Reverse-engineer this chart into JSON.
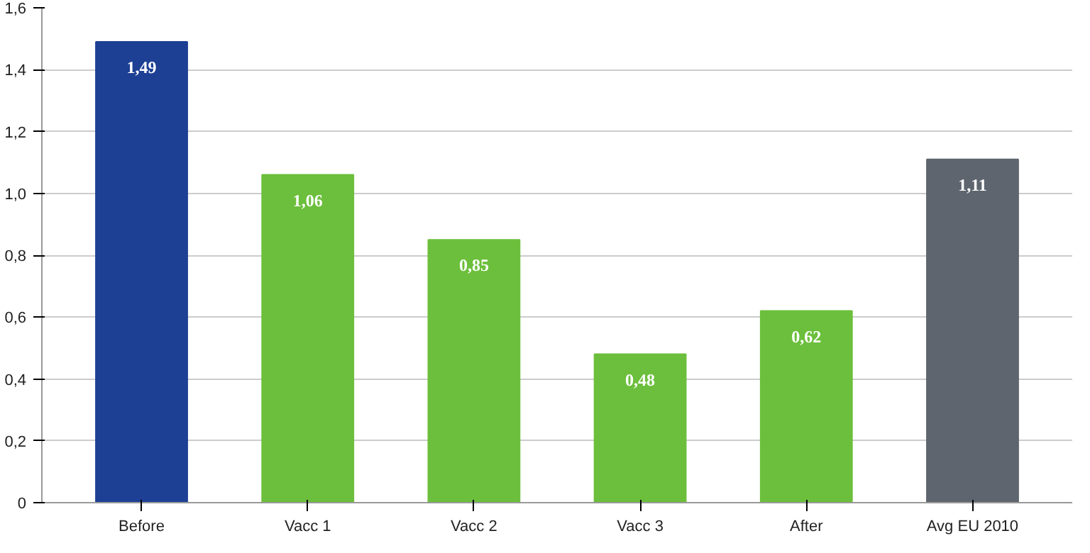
{
  "chart_data": {
    "type": "bar",
    "categories": [
      "Before",
      "Vacc 1",
      "Vacc 2",
      "Vacc 3",
      "After",
      "Avg EU 2010"
    ],
    "values": [
      1.49,
      1.06,
      0.85,
      0.48,
      0.62,
      1.11
    ],
    "colors": [
      "#1d3f94",
      "#6cbf3c",
      "#6cbf3c",
      "#6cbf3c",
      "#6cbf3c",
      "#5e656e"
    ],
    "value_labels": [
      "1,49",
      "1,06",
      "0,85",
      "0,48",
      "0,62",
      "1,11"
    ],
    "ylim": [
      0,
      1.6
    ],
    "yticks": [
      {
        "value": 0,
        "label": "0"
      },
      {
        "value": 0.2,
        "label": "0,2"
      },
      {
        "value": 0.4,
        "label": "0,4"
      },
      {
        "value": 0.6,
        "label": "0,6"
      },
      {
        "value": 0.8,
        "label": "0,8"
      },
      {
        "value": 1.0,
        "label": "1,0"
      },
      {
        "value": 1.2,
        "label": "1,2"
      },
      {
        "value": 1.4,
        "label": "1,4"
      },
      {
        "value": 1.6,
        "label": "1,6"
      }
    ],
    "grid": "y"
  }
}
